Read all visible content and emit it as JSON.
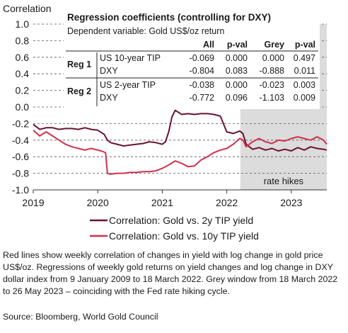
{
  "chart_data": {
    "type": "line",
    "ylabel": "Correlation",
    "ylim": [
      -1.0,
      1.0
    ],
    "yticks": [
      "1.0",
      "0.8",
      "0.6",
      "0.4",
      "0.2",
      "0.0",
      "-0.2",
      "-0.4",
      "-0.6",
      "-0.8",
      "-1.0"
    ],
    "xlim": [
      2019.0,
      2023.55
    ],
    "xticks": [
      "2019",
      "2020",
      "2021",
      "2022",
      "2023"
    ],
    "grid": "horizontal dashed",
    "shaded_region": {
      "x": [
        2022.21,
        2023.55
      ],
      "label": "rate hikes",
      "color": "#dcdcdc"
    },
    "series": [
      {
        "name": "Correlation: Gold vs. 2y TIP yield",
        "color": "#6b1232",
        "x": [
          2019.0,
          2019.1,
          2019.2,
          2019.3,
          2019.4,
          2019.5,
          2019.6,
          2019.7,
          2019.8,
          2019.9,
          2020.0,
          2020.1,
          2020.15,
          2020.2,
          2020.25,
          2020.3,
          2020.4,
          2020.5,
          2020.6,
          2020.7,
          2020.8,
          2020.9,
          2021.0,
          2021.05,
          2021.1,
          2021.15,
          2021.2,
          2021.3,
          2021.4,
          2021.5,
          2021.6,
          2021.7,
          2021.8,
          2021.9,
          2022.0,
          2022.1,
          2022.2,
          2022.25,
          2022.3,
          2022.4,
          2022.5,
          2022.6,
          2022.7,
          2022.8,
          2022.9,
          2023.0,
          2023.1,
          2023.2,
          2023.3,
          2023.4,
          2023.5,
          2023.55
        ],
        "y": [
          -0.21,
          -0.27,
          -0.25,
          -0.25,
          -0.27,
          -0.26,
          -0.26,
          -0.27,
          -0.25,
          -0.27,
          -0.28,
          -0.33,
          -0.4,
          -0.43,
          -0.44,
          -0.45,
          -0.47,
          -0.46,
          -0.45,
          -0.44,
          -0.42,
          -0.43,
          -0.45,
          -0.42,
          -0.3,
          -0.12,
          -0.04,
          -0.09,
          -0.08,
          -0.09,
          -0.08,
          -0.08,
          -0.09,
          -0.11,
          -0.3,
          -0.32,
          -0.29,
          -0.32,
          -0.45,
          -0.51,
          -0.49,
          -0.52,
          -0.5,
          -0.53,
          -0.51,
          -0.53,
          -0.49,
          -0.52,
          -0.48,
          -0.5,
          -0.51,
          -0.52
        ]
      },
      {
        "name": "Correlation: Gold vs. 10y TIP yield",
        "color": "#d0314c",
        "x": [
          2019.0,
          2019.1,
          2019.2,
          2019.3,
          2019.4,
          2019.5,
          2019.6,
          2019.7,
          2019.8,
          2019.9,
          2020.0,
          2020.05,
          2020.12,
          2020.15,
          2020.2,
          2020.3,
          2020.4,
          2020.5,
          2020.6,
          2020.7,
          2020.8,
          2020.9,
          2021.0,
          2021.1,
          2021.2,
          2021.3,
          2021.4,
          2021.5,
          2021.6,
          2021.7,
          2021.8,
          2021.9,
          2022.0,
          2022.1,
          2022.2,
          2022.25,
          2022.3,
          2022.4,
          2022.5,
          2022.6,
          2022.7,
          2022.8,
          2022.9,
          2023.0,
          2023.1,
          2023.2,
          2023.3,
          2023.4,
          2023.5,
          2023.55
        ],
        "y": [
          -0.28,
          -0.35,
          -0.3,
          -0.35,
          -0.4,
          -0.45,
          -0.48,
          -0.5,
          -0.52,
          -0.5,
          -0.52,
          -0.53,
          -0.55,
          -0.8,
          -0.81,
          -0.8,
          -0.8,
          -0.79,
          -0.79,
          -0.78,
          -0.78,
          -0.77,
          -0.74,
          -0.7,
          -0.65,
          -0.68,
          -0.72,
          -0.71,
          -0.64,
          -0.6,
          -0.55,
          -0.52,
          -0.5,
          -0.45,
          -0.38,
          -0.4,
          -0.48,
          -0.42,
          -0.38,
          -0.42,
          -0.44,
          -0.4,
          -0.41,
          -0.38,
          -0.36,
          -0.38,
          -0.4,
          -0.36,
          -0.4,
          -0.45
        ]
      }
    ],
    "table": {
      "title": "Regression coefficients (controlling for DXY)",
      "subtitle": "Dependent variable: Gold US$/oz return",
      "headers": [
        "All",
        "p-val",
        "Grey",
        "p-val"
      ],
      "rows": [
        {
          "group": "Reg 1",
          "var": "US 10-year TIP",
          "values": [
            "-0.069",
            "0.000",
            "0.000",
            "0.497"
          ]
        },
        {
          "group": "",
          "var": "DXY",
          "values": [
            "-0.804",
            "0.083",
            "-0.888",
            "0.011"
          ]
        },
        {
          "group": "Reg 2",
          "var": "US 2-year TIP",
          "values": [
            "-0.038",
            "0.000",
            "-0.023",
            "0.003"
          ]
        },
        {
          "group": "",
          "var": "DXY",
          "values": [
            "-0.772",
            "0.096",
            "-1.103",
            "0.009"
          ]
        }
      ]
    }
  },
  "caption": "Red lines show weekly correlation of changes in yield with log change in gold price US$/oz. Regressions of weekly gold returns on yield changes and log change in DXY dollar index from 9 January 2009 to 18 March 2022. Grey window from 18 March 2022 to 26 May 2023 – coinciding with the Fed rate hiking cycle.",
  "source": "Source: Bloomberg, World Gold Council"
}
